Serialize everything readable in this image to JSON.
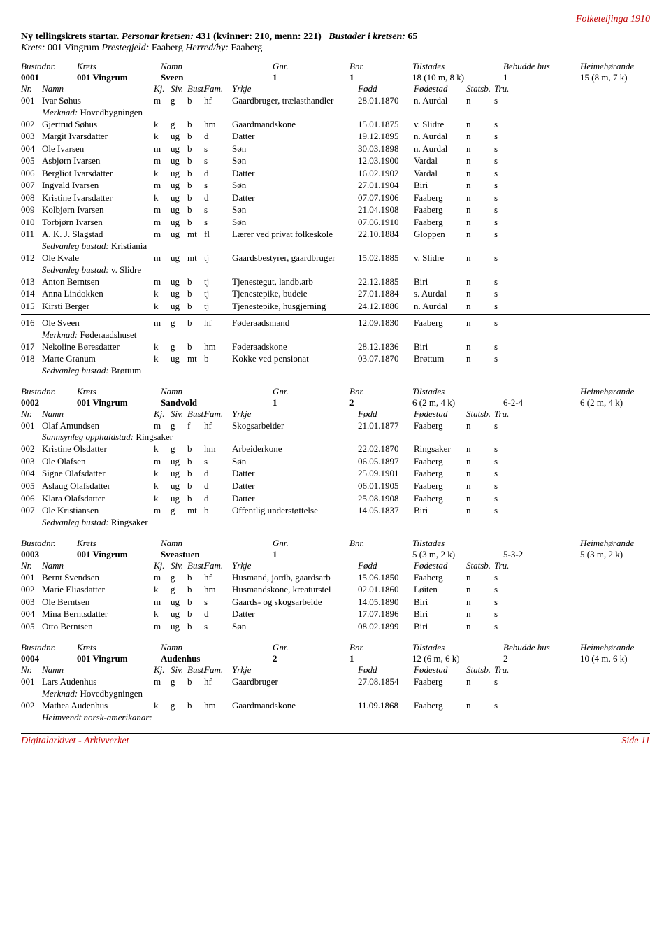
{
  "page_header": "Folketeljinga 1910",
  "intro": {
    "l1_a": "Ny tellingskrets startar.",
    "l1_b": "Personar kretsen:",
    "l1_c": "431 (kvinner: 210, menn: 221)",
    "l1_d": "Bustader i kretsen:",
    "l1_e": "65",
    "l2_a": "Krets:",
    "l2_b": "001 Vingrum",
    "l2_c": "Prestegjeld:",
    "l2_d": "Faaberg",
    "l2_e": "Herred/by:",
    "l2_f": "Faaberg"
  },
  "hhdr": {
    "c1": "Bustadnr.",
    "c2": "Krets",
    "c3": "Namn",
    "c4": "Gnr.",
    "c5": "Bnr.",
    "c6": "Tilstades",
    "c7": "Bebudde hus",
    "c8": "Heimehørande"
  },
  "hhdr_nohus": {
    "c1": "Bustadnr.",
    "c2": "Krets",
    "c3": "Namn",
    "c4": "Gnr.",
    "c5": "Bnr.",
    "c6": "Tilstades",
    "c7": "",
    "c8": "Heimehørande"
  },
  "phdr": {
    "c1": "Nr.",
    "c2": "Namn",
    "c3": "Kj.",
    "c4": "Siv.",
    "c5": "Bust.",
    "c6": "Fam.",
    "c7": "Yrkje",
    "c8": "Fødd",
    "c9": "Fødestad",
    "c10": "Statsb.",
    "c11": "Tru."
  },
  "h1": {
    "nr": "0001",
    "krets": "001 Vingrum",
    "namn": "Sveen",
    "gnr": "1",
    "bnr": "1",
    "til": "18 (10 m, 8 k)",
    "hus": "1",
    "heim": "15 (8 m, 7 k)"
  },
  "p1": [
    {
      "nr": "001",
      "navn": "Ivar Søhus",
      "kj": "m",
      "siv": "g",
      "bu": "b",
      "fam": "hf",
      "yrk": "Gaardbruger, trælasthandler",
      "fod": "28.01.1870",
      "sted": "n. Aurdal",
      "stat": "n",
      "tru": "s"
    },
    {
      "note": "Merknad: ",
      "noteval": "Hovedbygningen"
    },
    {
      "nr": "002",
      "navn": "Gjertrud Søhus",
      "kj": "k",
      "siv": "g",
      "bu": "b",
      "fam": "hm",
      "yrk": "Gaardmandskone",
      "fod": "15.01.1875",
      "sted": "v. Slidre",
      "stat": "n",
      "tru": "s"
    },
    {
      "nr": "003",
      "navn": "Margit Ivarsdatter",
      "kj": "k",
      "siv": "ug",
      "bu": "b",
      "fam": "d",
      "yrk": "Datter",
      "fod": "19.12.1895",
      "sted": "n. Aurdal",
      "stat": "n",
      "tru": "s"
    },
    {
      "nr": "004",
      "navn": "Ole Ivarsen",
      "kj": "m",
      "siv": "ug",
      "bu": "b",
      "fam": "s",
      "yrk": "Søn",
      "fod": "30.03.1898",
      "sted": "n. Aurdal",
      "stat": "n",
      "tru": "s"
    },
    {
      "nr": "005",
      "navn": "Asbjørn Ivarsen",
      "kj": "m",
      "siv": "ug",
      "bu": "b",
      "fam": "s",
      "yrk": "Søn",
      "fod": "12.03.1900",
      "sted": "Vardal",
      "stat": "n",
      "tru": "s"
    },
    {
      "nr": "006",
      "navn": "Bergliot Ivarsdatter",
      "kj": "k",
      "siv": "ug",
      "bu": "b",
      "fam": "d",
      "yrk": "Datter",
      "fod": "16.02.1902",
      "sted": "Vardal",
      "stat": "n",
      "tru": "s"
    },
    {
      "nr": "007",
      "navn": "Ingvald Ivarsen",
      "kj": "m",
      "siv": "ug",
      "bu": "b",
      "fam": "s",
      "yrk": "Søn",
      "fod": "27.01.1904",
      "sted": "Biri",
      "stat": "n",
      "tru": "s"
    },
    {
      "nr": "008",
      "navn": "Kristine Ivarsdatter",
      "kj": "k",
      "siv": "ug",
      "bu": "b",
      "fam": "d",
      "yrk": "Datter",
      "fod": "07.07.1906",
      "sted": "Faaberg",
      "stat": "n",
      "tru": "s"
    },
    {
      "nr": "009",
      "navn": "Kolbjørn Ivarsen",
      "kj": "m",
      "siv": "ug",
      "bu": "b",
      "fam": "s",
      "yrk": "Søn",
      "fod": "21.04.1908",
      "sted": "Faaberg",
      "stat": "n",
      "tru": "s"
    },
    {
      "nr": "010",
      "navn": "Torbjørn Ivarsen",
      "kj": "m",
      "siv": "ug",
      "bu": "b",
      "fam": "s",
      "yrk": "Søn",
      "fod": "07.06.1910",
      "sted": "Faaberg",
      "stat": "n",
      "tru": "s"
    },
    {
      "nr": "011",
      "navn": "A. K. J. Slagstad",
      "kj": "m",
      "siv": "ug",
      "bu": "mt",
      "fam": "fl",
      "yrk": "Lærer ved privat folkeskole",
      "fod": "22.10.1884",
      "sted": "Gloppen",
      "stat": "n",
      "tru": "s"
    },
    {
      "note": "Sedvanleg bustad: ",
      "noteval": "Kristiania"
    },
    {
      "nr": "012",
      "navn": "Ole Kvale",
      "kj": "m",
      "siv": "ug",
      "bu": "mt",
      "fam": "tj",
      "yrk": "Gaardsbestyrer, gaardbruger",
      "fod": "15.02.1885",
      "sted": "v. Slidre",
      "stat": "n",
      "tru": "s"
    },
    {
      "note": "Sedvanleg bustad: ",
      "noteval": "v. Slidre"
    },
    {
      "nr": "013",
      "navn": "Anton Berntsen",
      "kj": "m",
      "siv": "ug",
      "bu": "b",
      "fam": "tj",
      "yrk": "Tjenestegut, landb.arb",
      "fod": "22.12.1885",
      "sted": "Biri",
      "stat": "n",
      "tru": "s"
    },
    {
      "nr": "014",
      "navn": "Anna Lindokken",
      "kj": "k",
      "siv": "ug",
      "bu": "b",
      "fam": "tj",
      "yrk": "Tjenestepike, budeie",
      "fod": "27.01.1884",
      "sted": "s. Aurdal",
      "stat": "n",
      "tru": "s"
    },
    {
      "nr": "015",
      "navn": "Kirsti Berger",
      "kj": "k",
      "siv": "ug",
      "bu": "b",
      "fam": "tj",
      "yrk": "Tjenestepike, husgjerning",
      "fod": "24.12.1886",
      "sted": "n. Aurdal",
      "stat": "n",
      "tru": "s"
    },
    {
      "divider": true
    },
    {
      "nr": "016",
      "navn": "Ole Sveen",
      "kj": "m",
      "siv": "g",
      "bu": "b",
      "fam": "hf",
      "yrk": "Føderaadsmand",
      "fod": "12.09.1830",
      "sted": "Faaberg",
      "stat": "n",
      "tru": "s"
    },
    {
      "note": "Merknad: ",
      "noteval": "Føderaadshuset"
    },
    {
      "nr": "017",
      "navn": "Nekoline Børesdatter",
      "kj": "k",
      "siv": "g",
      "bu": "b",
      "fam": "hm",
      "yrk": "Føderaadskone",
      "fod": "28.12.1836",
      "sted": "Biri",
      "stat": "n",
      "tru": "s"
    },
    {
      "nr": "018",
      "navn": "Marte Granum",
      "kj": "k",
      "siv": "ug",
      "bu": "mt",
      "fam": "b",
      "yrk": "Kokke ved pensionat",
      "fod": "03.07.1870",
      "sted": "Brøttum",
      "stat": "n",
      "tru": "s"
    },
    {
      "note": "Sedvanleg bustad: ",
      "noteval": "Brøttum"
    }
  ],
  "h2": {
    "nr": "0002",
    "krets": "001 Vingrum",
    "namn": "Sandvold",
    "gnr": "1",
    "bnr": "2",
    "til": "6 (2 m, 4 k)",
    "hus": "6-2-4",
    "heim": "6 (2 m, 4 k)"
  },
  "p2": [
    {
      "nr": "001",
      "navn": "Olaf Amundsen",
      "kj": "m",
      "siv": "g",
      "bu": "f",
      "fam": "hf",
      "yrk": "Skogsarbeider",
      "fod": "21.01.1877",
      "sted": "Faaberg",
      "stat": "n",
      "tru": "s"
    },
    {
      "note": "Sannsynleg opphaldstad: ",
      "noteval": "Ringsaker"
    },
    {
      "nr": "002",
      "navn": "Kristine Olsdatter",
      "kj": "k",
      "siv": "g",
      "bu": "b",
      "fam": "hm",
      "yrk": "Arbeiderkone",
      "fod": "22.02.1870",
      "sted": "Ringsaker",
      "stat": "n",
      "tru": "s"
    },
    {
      "nr": "003",
      "navn": "Ole Olafsen",
      "kj": "m",
      "siv": "ug",
      "bu": "b",
      "fam": "s",
      "yrk": "Søn",
      "fod": "06.05.1897",
      "sted": "Faaberg",
      "stat": "n",
      "tru": "s"
    },
    {
      "nr": "004",
      "navn": "Signe Olafsdatter",
      "kj": "k",
      "siv": "ug",
      "bu": "b",
      "fam": "d",
      "yrk": "Datter",
      "fod": "25.09.1901",
      "sted": "Faaberg",
      "stat": "n",
      "tru": "s"
    },
    {
      "nr": "005",
      "navn": "Aslaug Olafsdatter",
      "kj": "k",
      "siv": "ug",
      "bu": "b",
      "fam": "d",
      "yrk": "Datter",
      "fod": "06.01.1905",
      "sted": "Faaberg",
      "stat": "n",
      "tru": "s"
    },
    {
      "nr": "006",
      "navn": "Klara Olafsdatter",
      "kj": "k",
      "siv": "ug",
      "bu": "b",
      "fam": "d",
      "yrk": "Datter",
      "fod": "25.08.1908",
      "sted": "Faaberg",
      "stat": "n",
      "tru": "s"
    },
    {
      "nr": "007",
      "navn": "Ole Kristiansen",
      "kj": "m",
      "siv": "g",
      "bu": "mt",
      "fam": "b",
      "yrk": "Offentlig understøttelse",
      "fod": "14.05.1837",
      "sted": "Biri",
      "stat": "n",
      "tru": "s"
    },
    {
      "note": "Sedvanleg bustad: ",
      "noteval": "Ringsaker"
    }
  ],
  "h3": {
    "nr": "0003",
    "krets": "001 Vingrum",
    "namn": "Sveastuen",
    "gnr": "1",
    "bnr": "",
    "til": "5 (3 m, 2 k)",
    "hus": "5-3-2",
    "heim": "5 (3 m, 2 k)"
  },
  "p3": [
    {
      "nr": "001",
      "navn": "Bernt Svendsen",
      "kj": "m",
      "siv": "g",
      "bu": "b",
      "fam": "hf",
      "yrk": "Husmand, jordb, gaardsarb",
      "fod": "15.06.1850",
      "sted": "Faaberg",
      "stat": "n",
      "tru": "s"
    },
    {
      "nr": "002",
      "navn": "Marie Eliasdatter",
      "kj": "k",
      "siv": "g",
      "bu": "b",
      "fam": "hm",
      "yrk": "Husmandskone, kreaturstel",
      "fod": "02.01.1860",
      "sted": "Løiten",
      "stat": "n",
      "tru": "s"
    },
    {
      "nr": "003",
      "navn": "Ole Berntsen",
      "kj": "m",
      "siv": "ug",
      "bu": "b",
      "fam": "s",
      "yrk": "Gaards- og skogsarbeide",
      "fod": "14.05.1890",
      "sted": "Biri",
      "stat": "n",
      "tru": "s"
    },
    {
      "nr": "004",
      "navn": "Mina Berntsdatter",
      "kj": "k",
      "siv": "ug",
      "bu": "b",
      "fam": "d",
      "yrk": "Datter",
      "fod": "17.07.1896",
      "sted": "Biri",
      "stat": "n",
      "tru": "s"
    },
    {
      "nr": "005",
      "navn": "Otto Berntsen",
      "kj": "m",
      "siv": "ug",
      "bu": "b",
      "fam": "s",
      "yrk": "Søn",
      "fod": "08.02.1899",
      "sted": "Biri",
      "stat": "n",
      "tru": "s"
    }
  ],
  "h4": {
    "nr": "0004",
    "krets": "001 Vingrum",
    "namn": "Audenhus",
    "gnr": "2",
    "bnr": "1",
    "til": "12 (6 m, 6 k)",
    "hus": "2",
    "heim": "10 (4 m, 6 k)"
  },
  "p4": [
    {
      "nr": "001",
      "navn": "Lars Audenhus",
      "kj": "m",
      "siv": "g",
      "bu": "b",
      "fam": "hf",
      "yrk": "Gaardbruger",
      "fod": "27.08.1854",
      "sted": "Faaberg",
      "stat": "n",
      "tru": "s"
    },
    {
      "note": "Merknad: ",
      "noteval": "Hovedbygningen"
    },
    {
      "nr": "002",
      "navn": "Mathea Audenhus",
      "kj": "k",
      "siv": "g",
      "bu": "b",
      "fam": "hm",
      "yrk": "Gaardmandskone",
      "fod": "11.09.1868",
      "sted": "Faaberg",
      "stat": "n",
      "tru": "s"
    },
    {
      "note": "Heimvendt norsk-amerikanar: ",
      "noteval": ""
    }
  ],
  "footer": {
    "left": "Digitalarkivet - Arkivverket",
    "right": "Side 11"
  }
}
